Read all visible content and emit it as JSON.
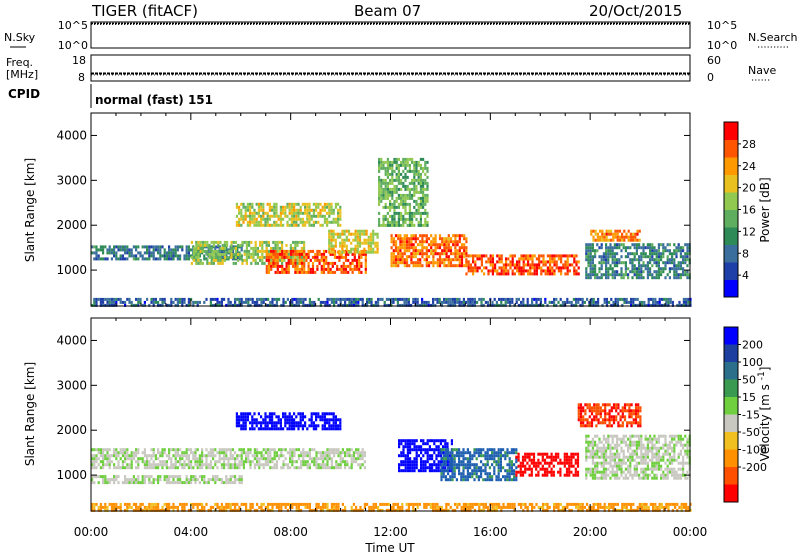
{
  "header": {
    "station": "TIGER (fitACF)",
    "beam": "Beam 07",
    "date": "20/Oct/2015"
  },
  "panels": {
    "nsky_label": "N.Sky",
    "nsearch_label": "N.Search",
    "freq_label_line1": "Freq.",
    "freq_label_line2": "[MHz]",
    "nave_label": "Nave",
    "cpid_label": "CPID",
    "cpid_value": "normal (fast) 151",
    "noise_ticks": [
      "10^5",
      "10^0"
    ],
    "freq_ticks": [
      "18",
      "8"
    ],
    "nave_ticks": [
      "60",
      "0"
    ],
    "freq_value_mhz": 10,
    "nave_value": 8
  },
  "colors": {
    "power": [
      "#0000ff",
      "#1f3fa8",
      "#3a6e9c",
      "#2e8b57",
      "#5fae5f",
      "#90c850",
      "#e8c020",
      "#ff9900",
      "#ff5500",
      "#ff0000"
    ],
    "velocity": [
      "#0000ff",
      "#1c3fa0",
      "#2c6f8a",
      "#3a9a50",
      "#6fcf3f",
      "#c8c8c0",
      "#f0c020",
      "#ff9000",
      "#ff5000",
      "#ff0000"
    ],
    "velocity_flow_blue": "#1f5fb0",
    "velocity_ground": "#c8c8c0"
  },
  "chart_data": [
    {
      "type": "heatmap",
      "name": "power",
      "ylabel": "Slant Range [km]",
      "xlabel": "Time UT",
      "x_ticks": [
        "00:00",
        "04:00",
        "08:00",
        "12:00",
        "16:00",
        "20:00",
        "00:00"
      ],
      "y_ticks": [
        1000,
        2000,
        3000,
        4000
      ],
      "ylim": [
        200,
        4500
      ],
      "colorbar_label": "Power [dB]",
      "colorbar_ticks": [
        4,
        8,
        12,
        16,
        20,
        24,
        28
      ],
      "colorbar_range": [
        0,
        32
      ],
      "regions": [
        {
          "t": [
            0,
            6
          ],
          "r": [
            1250,
            1550
          ],
          "v": 9
        },
        {
          "t": [
            4,
            8.5
          ],
          "r": [
            1150,
            1650
          ],
          "v": 17
        },
        {
          "t": [
            7,
            11
          ],
          "r": [
            950,
            1450
          ],
          "v": 27
        },
        {
          "t": [
            9.5,
            11.5
          ],
          "r": [
            1400,
            1900
          ],
          "v": 20
        },
        {
          "t": [
            12,
            15
          ],
          "r": [
            1100,
            1800
          ],
          "v": 26
        },
        {
          "t": [
            15,
            19.5
          ],
          "r": [
            900,
            1350
          ],
          "v": 28
        },
        {
          "t": [
            20,
            22
          ],
          "r": [
            1650,
            1900
          ],
          "v": 25
        },
        {
          "t": [
            19.8,
            24
          ],
          "r": [
            800,
            1600
          ],
          "v": 10
        },
        {
          "t": [
            5.8,
            10
          ],
          "r": [
            2000,
            2500
          ],
          "v": 19
        },
        {
          "t": [
            11.5,
            13.5
          ],
          "r": [
            2000,
            3500
          ],
          "v": 15
        },
        {
          "t": [
            0,
            24
          ],
          "r": [
            220,
            380
          ],
          "v": 7
        }
      ]
    },
    {
      "type": "heatmap",
      "name": "velocity",
      "ylabel": "Slant Range [km]",
      "xlabel": "Time UT",
      "x_ticks": [
        "00:00",
        "04:00",
        "08:00",
        "12:00",
        "16:00",
        "20:00",
        "00:00"
      ],
      "y_ticks": [
        1000,
        2000,
        3000,
        4000
      ],
      "ylim": [
        200,
        4500
      ],
      "colorbar_label": "Velocity [m s^-1]",
      "colorbar_ticks": [
        "200",
        "100",
        "50",
        "15",
        "-15",
        "-50",
        "-100",
        "-200"
      ],
      "regions": [
        {
          "t": [
            0,
            11
          ],
          "r": [
            1150,
            1600
          ],
          "v": 0
        },
        {
          "t": [
            0,
            6
          ],
          "r": [
            800,
            1000
          ],
          "v": 0
        },
        {
          "t": [
            5.8,
            10
          ],
          "r": [
            2000,
            2400
          ],
          "v": 180
        },
        {
          "t": [
            12.3,
            14.5
          ],
          "r": [
            1100,
            1800
          ],
          "v": 170
        },
        {
          "t": [
            14,
            17
          ],
          "r": [
            900,
            1600
          ],
          "v": 60
        },
        {
          "t": [
            17,
            19.5
          ],
          "r": [
            1000,
            1500
          ],
          "v": -180
        },
        {
          "t": [
            19.8,
            24
          ],
          "r": [
            900,
            1900
          ],
          "v": 0
        },
        {
          "t": [
            19.5,
            22
          ],
          "r": [
            2100,
            2600
          ],
          "v": -150
        },
        {
          "t": [
            0,
            24
          ],
          "r": [
            220,
            380
          ],
          "v": -60
        }
      ]
    }
  ]
}
